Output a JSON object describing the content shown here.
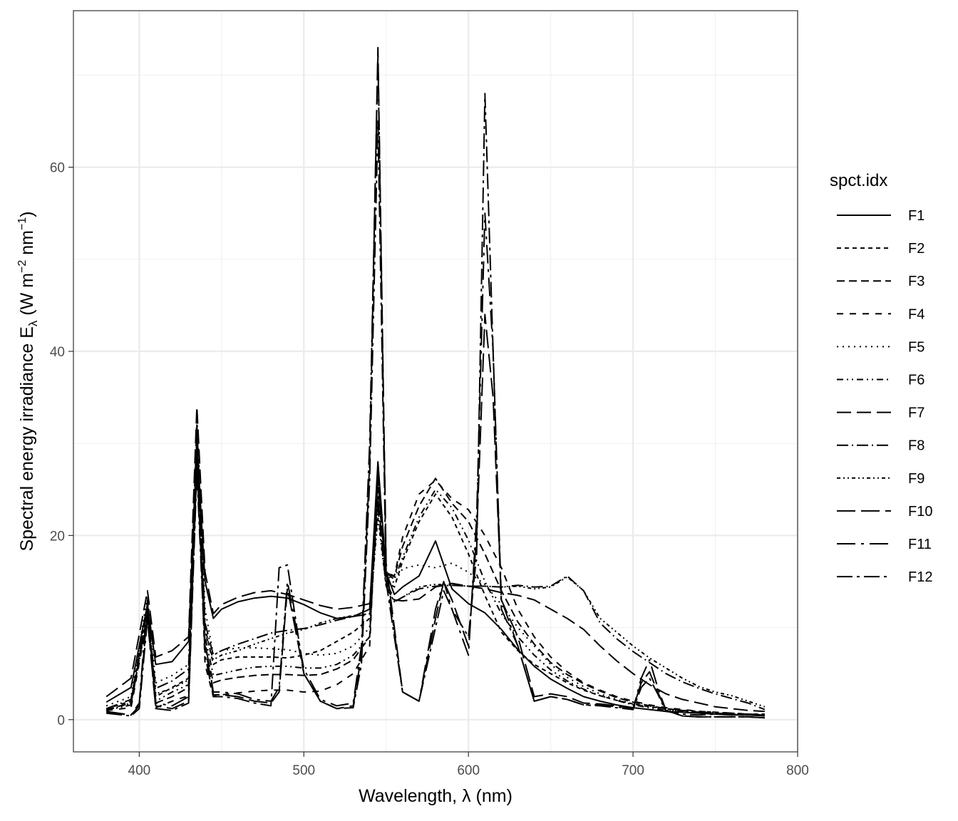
{
  "chart_data": {
    "type": "line",
    "xlabel": "Wavelength, λ (nm)",
    "ylabel": {
      "main": "Spectral  energy  irradiance  E",
      "subscript": "λ",
      "unit_open": "  (W m",
      "exp1": "−2",
      "unit_mid": " nm",
      "exp2": "−1",
      "unit_close": ")"
    },
    "xlim": [
      360,
      800
    ],
    "ylim": [
      -3.5,
      77
    ],
    "x_ticks": [
      400,
      500,
      600,
      700,
      800
    ],
    "y_ticks": [
      0,
      20,
      40,
      60
    ],
    "grid": true,
    "legend_title": "spct.idx",
    "legend_position": "right",
    "series": [
      {
        "name": "F1",
        "dash": "solid",
        "x": [
          380,
          395,
          405,
          410,
          420,
          430,
          435,
          440,
          445,
          450,
          460,
          470,
          480,
          490,
          500,
          510,
          520,
          530,
          540,
          545,
          550,
          555,
          560,
          570,
          580,
          590,
          600,
          610,
          620,
          630,
          640,
          650,
          660,
          670,
          680,
          690,
          700,
          710,
          720,
          730,
          740,
          750,
          760,
          770,
          780
        ],
        "y": [
          1.9,
          3.5,
          12.5,
          6,
          6.3,
          8.5,
          30,
          15,
          11,
          12,
          12.8,
          13.2,
          13.4,
          13.2,
          12.5,
          11.6,
          11,
          11.2,
          12,
          28,
          16,
          13.6,
          14.4,
          15.6,
          19.4,
          14.2,
          12.6,
          11.6,
          9.8,
          7.6,
          5.8,
          4.4,
          3.4,
          2.5,
          2,
          1.6,
          1.3,
          1.1,
          0.9,
          0.8,
          0.7,
          0.6,
          0.5,
          0.5,
          0.4
        ]
      },
      {
        "name": "F2",
        "dash": "6,5",
        "x": [
          380,
          395,
          405,
          410,
          420,
          430,
          435,
          440,
          445,
          450,
          460,
          470,
          480,
          490,
          500,
          510,
          520,
          530,
          540,
          545,
          550,
          555,
          560,
          570,
          580,
          590,
          600,
          610,
          620,
          630,
          640,
          650,
          660,
          670,
          680,
          690,
          700,
          710,
          720,
          730,
          740,
          750,
          760,
          770,
          780
        ],
        "y": [
          1.2,
          2,
          12.5,
          2.5,
          3.5,
          4.5,
          31,
          10,
          6,
          6.5,
          6.8,
          6.8,
          6.8,
          6.7,
          7,
          7.5,
          8.5,
          9.5,
          11,
          26,
          15,
          14.4,
          17.2,
          21.5,
          24.5,
          22,
          18,
          13.5,
          9.5,
          7.5,
          6,
          5,
          4,
          3.2,
          2.6,
          2.1,
          1.7,
          1.4,
          1.2,
          1,
          0.9,
          0.8,
          0.7,
          0.6,
          0.6
        ]
      },
      {
        "name": "F3",
        "dash": "11,6",
        "x": [
          380,
          395,
          405,
          410,
          420,
          430,
          435,
          440,
          445,
          450,
          460,
          470,
          480,
          490,
          500,
          510,
          520,
          530,
          540,
          545,
          550,
          555,
          560,
          570,
          580,
          590,
          600,
          610,
          620,
          630,
          640,
          650,
          660,
          670,
          680,
          690,
          700,
          710,
          720,
          730,
          740,
          750,
          760,
          770,
          780
        ],
        "y": [
          1.1,
          1.8,
          11.5,
          1.8,
          2.5,
          3.5,
          30,
          8,
          4,
          4.3,
          4.6,
          4.8,
          4.9,
          4.9,
          4.8,
          4.9,
          5.5,
          6.5,
          9,
          26,
          16,
          15.5,
          18.8,
          23.2,
          26.2,
          23.5,
          21.5,
          18,
          14,
          10.6,
          8.2,
          6.2,
          4.9,
          3.9,
          3.1,
          2.4,
          1.9,
          1.5,
          1.2,
          1,
          0.8,
          0.7,
          0.6,
          0.5,
          0.5
        ]
      },
      {
        "name": "F4",
        "dash": "9,9",
        "x": [
          380,
          395,
          405,
          410,
          420,
          430,
          435,
          440,
          445,
          450,
          460,
          470,
          480,
          490,
          500,
          510,
          520,
          530,
          540,
          545,
          550,
          555,
          560,
          570,
          580,
          590,
          600,
          610,
          620,
          630,
          640,
          650,
          660,
          670,
          680,
          690,
          700,
          710,
          720,
          730,
          740,
          750,
          760,
          770,
          780
        ],
        "y": [
          1,
          1.3,
          11,
          1.3,
          2,
          2.6,
          30,
          6,
          2.5,
          2.7,
          2.9,
          3.1,
          3.2,
          3.2,
          3,
          3.1,
          3.8,
          5,
          8,
          27,
          16,
          15.6,
          19.8,
          24.5,
          26,
          24,
          22.8,
          20,
          16.5,
          12,
          9,
          6.8,
          5.2,
          4,
          3.2,
          2.5,
          2,
          1.6,
          1.3,
          1.1,
          0.9,
          0.8,
          0.7,
          0.6,
          0.5
        ]
      },
      {
        "name": "F5",
        "dash": "2,6",
        "x": [
          380,
          395,
          405,
          410,
          420,
          430,
          435,
          440,
          445,
          450,
          460,
          470,
          480,
          490,
          500,
          510,
          520,
          530,
          540,
          545,
          550,
          555,
          560,
          570,
          580,
          590,
          600,
          610,
          620,
          630,
          640,
          650,
          660,
          670,
          680,
          690,
          700,
          710,
          720,
          730,
          740,
          750,
          760,
          770,
          780
        ],
        "y": [
          1.5,
          2.5,
          13.5,
          4,
          4.8,
          6,
          33,
          12,
          7,
          7.5,
          7.8,
          7.8,
          7.7,
          7.6,
          7.2,
          7,
          7.2,
          8,
          10,
          26,
          16,
          14.8,
          16.4,
          16.8,
          16.5,
          17,
          16,
          14.7,
          12.5,
          10,
          8,
          6,
          4.6,
          3.6,
          2.8,
          2.2,
          1.7,
          1.4,
          1.1,
          0.9,
          0.8,
          0.7,
          0.6,
          0.5,
          0.5
        ]
      },
      {
        "name": "F6",
        "dash": "9,5,2,5,2,5",
        "x": [
          380,
          395,
          405,
          410,
          420,
          430,
          435,
          440,
          445,
          450,
          460,
          470,
          480,
          490,
          500,
          510,
          520,
          530,
          540,
          545,
          550,
          555,
          560,
          570,
          580,
          590,
          600,
          610,
          620,
          630,
          640,
          650,
          660,
          670,
          680,
          690,
          700,
          710,
          720,
          730,
          740,
          750,
          760,
          770,
          780
        ],
        "y": [
          1,
          1.6,
          11.5,
          2,
          3,
          3.8,
          31,
          9,
          4.8,
          5,
          5.4,
          5.7,
          5.8,
          5.8,
          5.6,
          5.6,
          6,
          7,
          9,
          25,
          16,
          15.2,
          17.6,
          22,
          25,
          23,
          19.5,
          15,
          11.5,
          9,
          7,
          5.4,
          4.2,
          3.3,
          2.6,
          2.1,
          1.6,
          1.3,
          1,
          0.9,
          0.8,
          0.7,
          0.6,
          0.5,
          0.5
        ]
      },
      {
        "name": "F7",
        "dash": "20,8",
        "x": [
          380,
          395,
          405,
          410,
          420,
          430,
          435,
          440,
          445,
          450,
          460,
          470,
          480,
          490,
          500,
          510,
          520,
          530,
          540,
          545,
          550,
          555,
          560,
          570,
          580,
          590,
          600,
          610,
          620,
          630,
          640,
          650,
          660,
          670,
          680,
          690,
          700,
          710,
          720,
          730,
          740,
          750,
          760,
          770,
          780
        ],
        "y": [
          2.5,
          4.5,
          14,
          6.8,
          7.5,
          9,
          34,
          16,
          11.5,
          12.5,
          13.3,
          13.8,
          14,
          13.6,
          13,
          12.4,
          12,
          12.2,
          12.6,
          24,
          15,
          13,
          12.9,
          13.1,
          14.4,
          14.8,
          14.5,
          14.2,
          13.8,
          13.5,
          13,
          12,
          11,
          9.8,
          8,
          6.4,
          5,
          3.8,
          2.8,
          2.2,
          1.8,
          1.4,
          1.2,
          1,
          0.9
        ]
      },
      {
        "name": "F8",
        "dash": "16,5,2,5",
        "x": [
          380,
          395,
          405,
          410,
          420,
          430,
          435,
          440,
          445,
          450,
          460,
          470,
          480,
          490,
          500,
          510,
          520,
          530,
          540,
          545,
          550,
          555,
          560,
          570,
          580,
          590,
          600,
          610,
          620,
          630,
          640,
          650,
          660,
          670,
          680,
          690,
          700,
          710,
          720,
          730,
          740,
          750,
          760,
          770,
          780
        ],
        "y": [
          1.2,
          2.2,
          12,
          3.4,
          4.2,
          5.5,
          32,
          10.5,
          7,
          7.5,
          8.2,
          8.8,
          9.4,
          9.7,
          9.9,
          10.3,
          10.8,
          11.2,
          11.5,
          23,
          14.5,
          12.8,
          13.3,
          14.2,
          14.5,
          14.6,
          14.5,
          14.5,
          14.4,
          14.6,
          14.4,
          14.5,
          15.6,
          14,
          10.5,
          8.8,
          7.4,
          6.2,
          5,
          4.1,
          3.4,
          2.8,
          2.3,
          1.8,
          1.1
        ]
      },
      {
        "name": "F9",
        "dash": "5,4,2,4,2,4",
        "x": [
          380,
          395,
          405,
          410,
          420,
          430,
          435,
          440,
          445,
          450,
          460,
          470,
          480,
          490,
          500,
          510,
          520,
          530,
          540,
          545,
          550,
          555,
          560,
          570,
          580,
          590,
          600,
          610,
          620,
          630,
          640,
          650,
          660,
          670,
          680,
          690,
          700,
          710,
          720,
          730,
          740,
          750,
          760,
          770,
          780
        ],
        "y": [
          1,
          1.8,
          11,
          2.8,
          3.4,
          4.3,
          31,
          9.5,
          6.5,
          7,
          7.5,
          8.2,
          8.8,
          9.4,
          9.8,
          10.5,
          11,
          11.3,
          11.5,
          22,
          14.5,
          12.8,
          13.3,
          14.4,
          14.7,
          14.6,
          14.5,
          14.5,
          14.4,
          14.5,
          14.2,
          14.4,
          15.5,
          14,
          11,
          9.5,
          8,
          6.7,
          5.6,
          4.5,
          3.6,
          3,
          2.6,
          2,
          1.4
        ]
      },
      {
        "name": "F10",
        "dash": "26,8",
        "x": [
          380,
          395,
          400,
          405,
          410,
          420,
          430,
          435,
          440,
          445,
          450,
          460,
          470,
          480,
          485,
          490,
          500,
          510,
          520,
          530,
          535,
          540,
          545,
          550,
          560,
          570,
          580,
          585,
          590,
          600,
          605,
          610,
          615,
          620,
          630,
          640,
          650,
          660,
          670,
          680,
          690,
          700,
          705,
          710,
          715,
          720,
          730,
          740,
          750,
          760,
          770,
          780
        ],
        "y": [
          0.8,
          0.5,
          1.5,
          12,
          1.5,
          1.2,
          2,
          28,
          8,
          2.7,
          2.7,
          2.5,
          2,
          1.8,
          3,
          14.3,
          5,
          2,
          1.2,
          1.5,
          7,
          28,
          73,
          17,
          3,
          2,
          11,
          15,
          13,
          8,
          20,
          44,
          35,
          13,
          9,
          2.5,
          2.8,
          2.5,
          1.8,
          1.7,
          1.5,
          1.2,
          4,
          5.2,
          3,
          1,
          0.4,
          0.3,
          0.3,
          0.3,
          0.3,
          0.2
        ]
      },
      {
        "name": "F11",
        "dash": "26,8,4,8",
        "x": [
          380,
          395,
          400,
          405,
          410,
          420,
          430,
          435,
          440,
          445,
          450,
          460,
          470,
          480,
          485,
          490,
          500,
          510,
          520,
          530,
          535,
          540,
          545,
          550,
          560,
          570,
          580,
          585,
          590,
          600,
          605,
          610,
          615,
          620,
          630,
          640,
          650,
          660,
          670,
          680,
          690,
          700,
          705,
          710,
          715,
          720,
          730,
          740,
          750,
          760,
          770,
          780
        ],
        "y": [
          0.9,
          0.5,
          1.8,
          13,
          1.8,
          1.5,
          2.5,
          29,
          8.5,
          3,
          3,
          2.8,
          2.2,
          2,
          3.5,
          15,
          5.5,
          2.2,
          1.5,
          1.8,
          8,
          30,
          72,
          16,
          3,
          2,
          12,
          15,
          12,
          7,
          22,
          55,
          40,
          12,
          8,
          2,
          2.5,
          2.2,
          1.6,
          1.6,
          1.4,
          1.1,
          4.5,
          6.5,
          3.5,
          1,
          0.4,
          0.3,
          0.3,
          0.3,
          0.3,
          0.2
        ]
      },
      {
        "name": "F12",
        "dash": "22,6,4,6",
        "x": [
          380,
          395,
          400,
          405,
          410,
          420,
          430,
          435,
          440,
          445,
          450,
          460,
          470,
          480,
          485,
          490,
          500,
          510,
          520,
          530,
          535,
          540,
          545,
          550,
          560,
          570,
          580,
          585,
          590,
          600,
          605,
          610,
          615,
          620,
          630,
          640,
          650,
          660,
          670,
          680,
          690,
          700,
          705,
          710,
          715,
          720,
          730,
          740,
          750,
          760,
          770,
          780
        ],
        "y": [
          0.7,
          0.4,
          1.2,
          11,
          1.2,
          1,
          1.8,
          27,
          7,
          2.5,
          2.5,
          2.3,
          1.8,
          1.5,
          16.5,
          16.8,
          5,
          2,
          1.2,
          1.3,
          6,
          26,
          65,
          15,
          3,
          2,
          10,
          14,
          12,
          9,
          18,
          68,
          40,
          13,
          8,
          2,
          2.5,
          2.2,
          1.6,
          1.5,
          1.3,
          1.1,
          3.5,
          4.5,
          2.8,
          0.9,
          0.6,
          0.5,
          0.6,
          0.6,
          0.6,
          0.5
        ]
      }
    ]
  }
}
